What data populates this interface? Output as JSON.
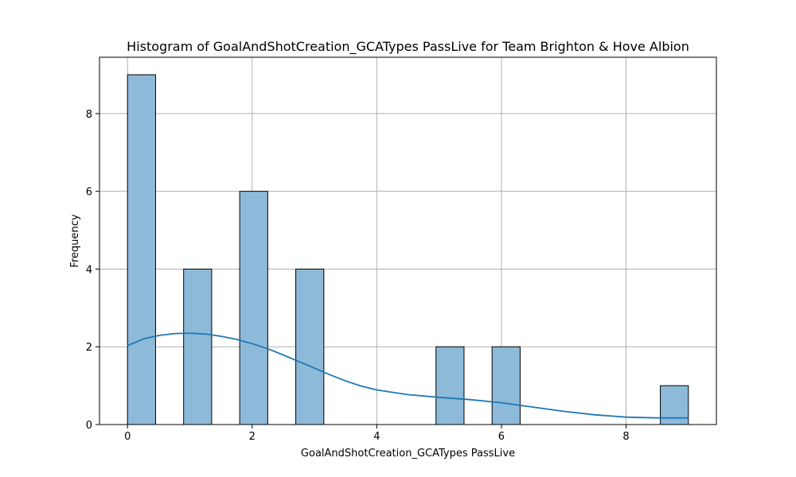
{
  "chart_data": {
    "type": "bar",
    "title": "Histogram of GoalAndShotCreation_GCATypes PassLive for Team Brighton & Hove Albion",
    "xlabel": "GoalAndShotCreation_GCATypes PassLive",
    "ylabel": "Frequency",
    "xlim": [
      -0.45,
      9.45
    ],
    "ylim": [
      0,
      9.45
    ],
    "xticks": [
      0,
      2,
      4,
      6,
      8
    ],
    "yticks": [
      0,
      2,
      4,
      6,
      8
    ],
    "grid": true,
    "bin_width": 0.45,
    "bins": [
      {
        "x0": 0.0,
        "x1": 0.45,
        "count": 9
      },
      {
        "x0": 0.9,
        "x1": 1.35,
        "count": 4
      },
      {
        "x0": 1.8,
        "x1": 2.25,
        "count": 6
      },
      {
        "x0": 2.7,
        "x1": 3.15,
        "count": 4
      },
      {
        "x0": 4.95,
        "x1": 5.4,
        "count": 2
      },
      {
        "x0": 5.85,
        "x1": 6.3,
        "count": 2
      },
      {
        "x0": 8.55,
        "x1": 9.0,
        "count": 1
      }
    ],
    "kde": [
      [
        0.0,
        2.03
      ],
      [
        0.25,
        2.2
      ],
      [
        0.5,
        2.29
      ],
      [
        0.75,
        2.34
      ],
      [
        1.0,
        2.35
      ],
      [
        1.25,
        2.33
      ],
      [
        1.5,
        2.27
      ],
      [
        1.75,
        2.19
      ],
      [
        2.0,
        2.08
      ],
      [
        2.25,
        1.95
      ],
      [
        2.5,
        1.79
      ],
      [
        2.75,
        1.62
      ],
      [
        3.0,
        1.45
      ],
      [
        3.25,
        1.28
      ],
      [
        3.5,
        1.12
      ],
      [
        3.75,
        0.99
      ],
      [
        4.0,
        0.89
      ],
      [
        4.5,
        0.77
      ],
      [
        5.0,
        0.7
      ],
      [
        5.5,
        0.64
      ],
      [
        6.0,
        0.56
      ],
      [
        6.5,
        0.45
      ],
      [
        7.0,
        0.34
      ],
      [
        7.5,
        0.25
      ],
      [
        8.0,
        0.19
      ],
      [
        8.5,
        0.17
      ],
      [
        9.0,
        0.17
      ]
    ],
    "colors": {
      "bar_fill": "#8ebad9",
      "bar_edge": "#000000",
      "kde_line": "#1f77b4",
      "grid": "#b0b0b0"
    }
  }
}
